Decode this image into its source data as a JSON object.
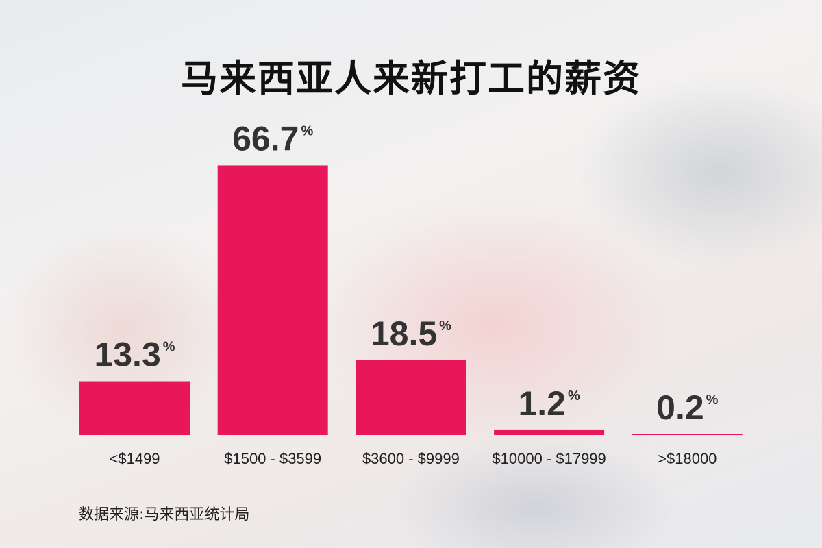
{
  "chart_data": {
    "type": "bar",
    "title": "马来西亚人来新打工的薪资",
    "categories": [
      "<$1499",
      "$1500 - $3599",
      "$3600 - $9999",
      "$10000 - $17999",
      ">$18000"
    ],
    "values": [
      13.3,
      66.7,
      18.5,
      1.2,
      0.2
    ],
    "value_suffix": "%",
    "bar_color": "#e8175a",
    "source": "数据来源:马来西亚统计局",
    "grid": false
  }
}
